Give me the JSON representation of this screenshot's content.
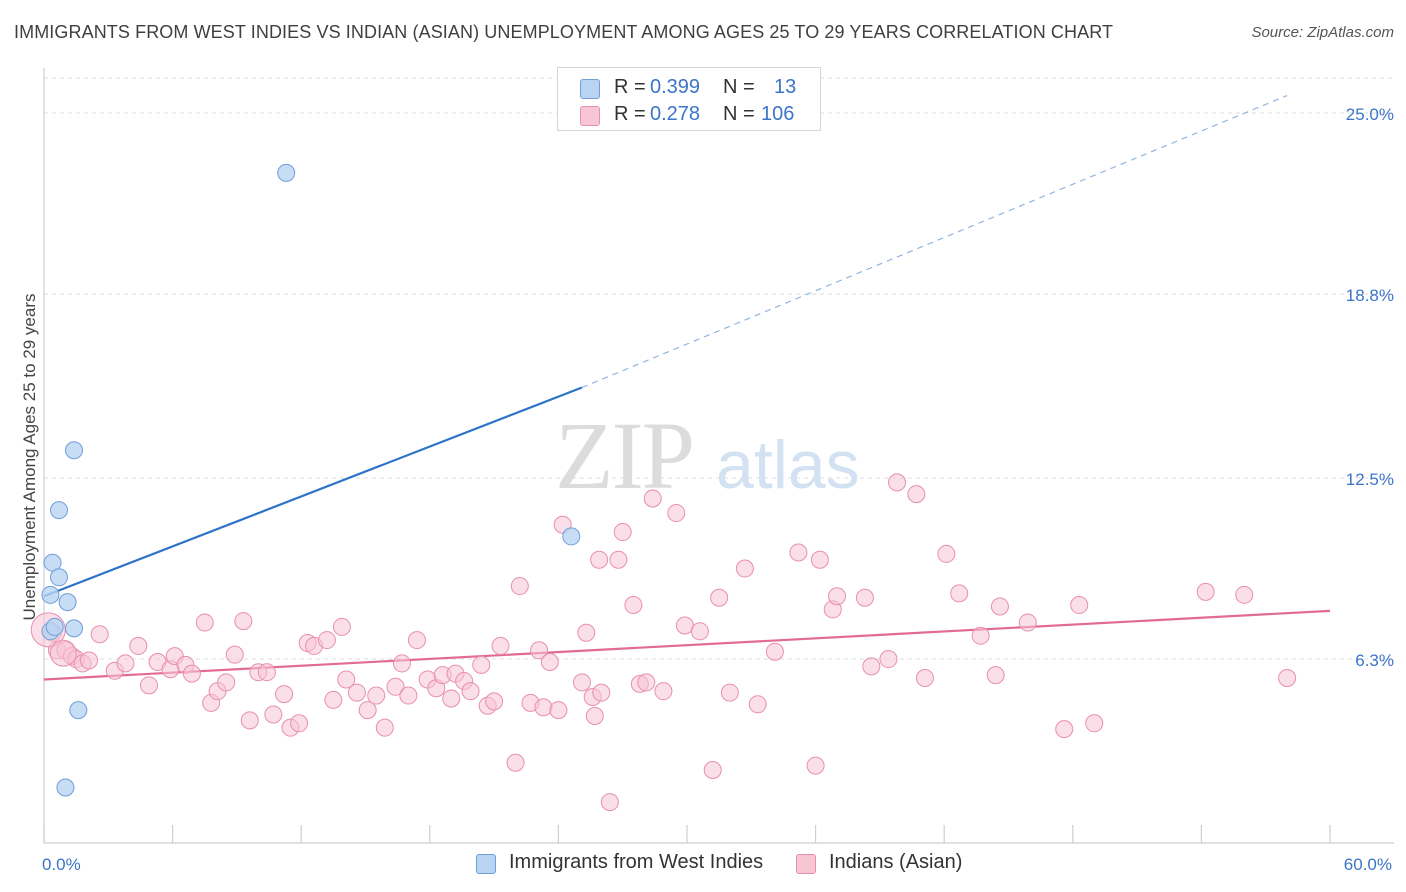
{
  "title": "IMMIGRANTS FROM WEST INDIES VS INDIAN (ASIAN) UNEMPLOYMENT AMONG AGES 25 TO 29 YEARS CORRELATION CHART",
  "source": "Source: ZipAtlas.com",
  "watermark": {
    "zip": "ZIP",
    "atlas": "atlas"
  },
  "legend_top": [
    {
      "r_label": "R =",
      "r_value": "0.399",
      "n_label": "N =",
      "n_value": "13"
    },
    {
      "r_label": "R =",
      "r_value": "0.278",
      "n_label": "N =",
      "n_value": "106"
    }
  ],
  "legend_bottom": [
    {
      "label": "Immigrants from West Indies"
    },
    {
      "label": "Indians (Asian)"
    }
  ],
  "colors": {
    "blue_fill": "#b9d3f2",
    "blue_stroke": "#6f9fd8",
    "blue_line": "#2f73c9",
    "pink_fill": "#f8c5d5",
    "pink_stroke": "#e88fad",
    "pink_line": "#e26b96",
    "tick_text": "#3b74c9",
    "grid": "#dcdcdc"
  },
  "chart_data": {
    "type": "scatter",
    "title": "IMMIGRANTS FROM WEST INDIES VS INDIAN (ASIAN) UNEMPLOYMENT AMONG AGES 25 TO 29 YEARS CORRELATION CHART",
    "xlabel": "",
    "ylabel": "Unemployment Among Ages 25 to 29 years",
    "xlim": [
      0,
      60
    ],
    "ylim": [
      0,
      26.2
    ],
    "x_tick_labels": [
      {
        "value": 0,
        "label": "0.0%"
      },
      {
        "value": 60,
        "label": "60.0%"
      }
    ],
    "y_tick_labels": [
      {
        "value": 6.3,
        "label": "6.3%"
      },
      {
        "value": 12.5,
        "label": "12.5%"
      },
      {
        "value": 18.8,
        "label": "18.8%"
      },
      {
        "value": 25.0,
        "label": "25.0%"
      }
    ],
    "series": [
      {
        "name": "Immigrants from West Indies",
        "color": "blue",
        "R": 0.399,
        "N": 13,
        "trend": {
          "x0": 0,
          "y0": 8.45,
          "x1": 25.1,
          "y1": 15.6,
          "dash_to_x": 58,
          "dash_to_y": 25.6
        },
        "points": [
          [
            0.3,
            7.25
          ],
          [
            0.4,
            9.6
          ],
          [
            0.3,
            8.5
          ],
          [
            0.7,
            9.1
          ],
          [
            0.7,
            11.4
          ],
          [
            1.1,
            8.25
          ],
          [
            1.4,
            7.35
          ],
          [
            1.4,
            13.45
          ],
          [
            1.6,
            4.55
          ],
          [
            1.0,
            1.9
          ],
          [
            11.3,
            22.95
          ],
          [
            24.6,
            10.5
          ],
          [
            0.5,
            7.4
          ]
        ]
      },
      {
        "name": "Indians (Asian)",
        "color": "pink",
        "R": 0.278,
        "N": 106,
        "trend": {
          "x0": 0,
          "y0": 5.6,
          "x1": 60,
          "y1": 7.95
        },
        "points": [
          [
            0.4,
            7.2
          ],
          [
            0.6,
            6.6
          ],
          [
            1.0,
            6.6
          ],
          [
            1.3,
            6.4
          ],
          [
            1.5,
            6.3
          ],
          [
            1.8,
            6.15
          ],
          [
            2.1,
            6.25
          ],
          [
            2.6,
            7.15
          ],
          [
            3.3,
            5.9
          ],
          [
            3.8,
            6.15
          ],
          [
            4.4,
            6.75
          ],
          [
            4.9,
            5.4
          ],
          [
            5.3,
            6.2
          ],
          [
            5.9,
            5.95
          ],
          [
            6.1,
            6.4
          ],
          [
            6.6,
            6.1
          ],
          [
            6.9,
            5.8
          ],
          [
            7.5,
            7.55
          ],
          [
            7.8,
            4.8
          ],
          [
            8.1,
            5.2
          ],
          [
            8.5,
            5.5
          ],
          [
            8.9,
            6.45
          ],
          [
            9.3,
            7.6
          ],
          [
            9.6,
            4.2
          ],
          [
            10.0,
            5.85
          ],
          [
            10.4,
            5.85
          ],
          [
            10.7,
            4.4
          ],
          [
            11.2,
            5.1
          ],
          [
            11.5,
            3.95
          ],
          [
            11.9,
            4.1
          ],
          [
            12.3,
            6.85
          ],
          [
            12.6,
            6.75
          ],
          [
            13.2,
            6.95
          ],
          [
            13.5,
            4.9
          ],
          [
            13.9,
            7.4
          ],
          [
            14.1,
            5.6
          ],
          [
            14.6,
            5.15
          ],
          [
            15.1,
            4.55
          ],
          [
            15.5,
            5.05
          ],
          [
            15.9,
            3.95
          ],
          [
            16.4,
            5.35
          ],
          [
            16.7,
            6.15
          ],
          [
            17.0,
            5.05
          ],
          [
            17.4,
            6.95
          ],
          [
            17.9,
            5.6
          ],
          [
            18.3,
            5.3
          ],
          [
            18.6,
            5.75
          ],
          [
            19.0,
            4.95
          ],
          [
            19.2,
            5.8
          ],
          [
            19.6,
            5.55
          ],
          [
            19.9,
            5.2
          ],
          [
            20.4,
            6.1
          ],
          [
            20.7,
            4.7
          ],
          [
            21.0,
            4.85
          ],
          [
            21.3,
            6.75
          ],
          [
            22.0,
            2.75
          ],
          [
            22.2,
            8.8
          ],
          [
            22.7,
            4.8
          ],
          [
            23.1,
            6.6
          ],
          [
            23.3,
            4.65
          ],
          [
            23.6,
            6.2
          ],
          [
            24.0,
            4.55
          ],
          [
            24.2,
            10.9
          ],
          [
            25.1,
            5.5
          ],
          [
            25.3,
            7.2
          ],
          [
            25.6,
            5.0
          ],
          [
            25.7,
            4.35
          ],
          [
            25.9,
            9.7
          ],
          [
            26.0,
            5.15
          ],
          [
            26.4,
            1.4
          ],
          [
            26.8,
            9.7
          ],
          [
            27.0,
            10.65
          ],
          [
            27.5,
            8.15
          ],
          [
            27.8,
            5.45
          ],
          [
            28.1,
            5.5
          ],
          [
            28.4,
            11.8
          ],
          [
            28.9,
            5.2
          ],
          [
            29.5,
            11.3
          ],
          [
            29.9,
            7.45
          ],
          [
            30.6,
            7.25
          ],
          [
            31.2,
            2.5
          ],
          [
            31.5,
            8.4
          ],
          [
            32.0,
            5.15
          ],
          [
            32.7,
            9.4
          ],
          [
            33.3,
            4.75
          ],
          [
            34.1,
            6.55
          ],
          [
            35.2,
            9.95
          ],
          [
            36.0,
            2.65
          ],
          [
            36.2,
            9.7
          ],
          [
            36.8,
            8.0
          ],
          [
            37.0,
            8.45
          ],
          [
            38.3,
            8.4
          ],
          [
            38.6,
            6.05
          ],
          [
            39.4,
            6.3
          ],
          [
            39.8,
            12.35
          ],
          [
            40.7,
            11.95
          ],
          [
            41.1,
            5.65
          ],
          [
            42.1,
            9.9
          ],
          [
            42.7,
            8.55
          ],
          [
            43.7,
            7.1
          ],
          [
            44.4,
            5.75
          ],
          [
            44.6,
            8.1
          ],
          [
            45.9,
            7.55
          ],
          [
            47.6,
            3.9
          ],
          [
            48.3,
            8.15
          ],
          [
            49.0,
            4.1
          ],
          [
            54.2,
            8.6
          ],
          [
            56.0,
            8.5
          ],
          [
            58.0,
            5.65
          ]
        ]
      }
    ]
  }
}
